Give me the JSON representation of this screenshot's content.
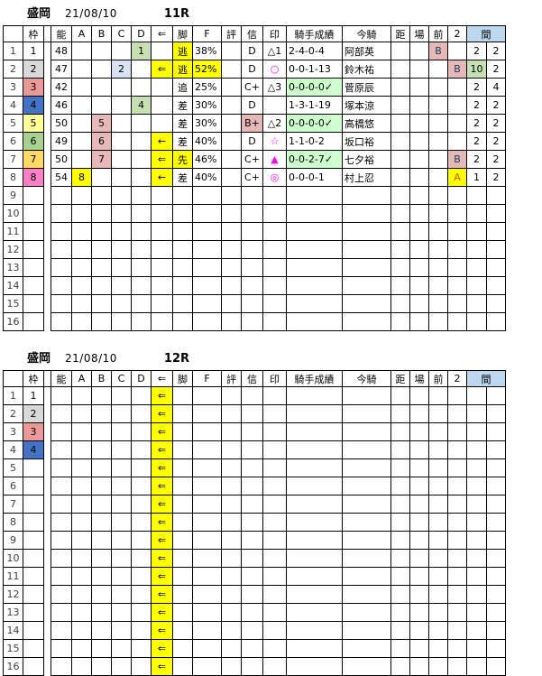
{
  "meta": {
    "venue": "盛岡",
    "date": "21/08/10"
  },
  "colors": {
    "yellow": "#ffff00",
    "green": "#c6e0b4",
    "paleGreen": "#ccffcc",
    "blue": "#d9e1f2",
    "rose": "#e6b9b8",
    "wakuGray": "#d9d9d9",
    "wakuRed": "#ea9999",
    "wakuBlue": "#4472c4",
    "wakuYellow": "#ffff99",
    "wakuGreen": "#a9d08e",
    "wakuOrange": "#ffd966",
    "wakuPink": "#ff80c5",
    "headerBand": "#bdd7ee",
    "magenta": "#ff00ff",
    "navy": "#1f3864",
    "burnt": "#c55a11"
  },
  "tables": [
    {
      "race": "11R",
      "headers": [
        "",
        "枠",
        "",
        "能",
        "A",
        "B",
        "C",
        "D",
        "⇐",
        "脚",
        "F",
        "評",
        "信",
        "印",
        "騎手成績",
        "今騎",
        "距",
        "場",
        "前",
        "2",
        "間"
      ],
      "rows": [
        [
          "1",
          "1",
          "",
          "48",
          "",
          "",
          "",
          {
            "t": "1",
            "bg": "green"
          },
          "",
          {
            "t": "逃",
            "bg": "yellow"
          },
          "38%",
          "",
          "D",
          "△1",
          "2-4-0-4",
          "阿部英",
          "",
          "",
          {
            "t": "B",
            "bg": "rose",
            "fg": "navy"
          },
          "",
          "2",
          "2"
        ],
        [
          "2",
          {
            "t": "2",
            "bg": "wakuGray"
          },
          "",
          "47",
          "",
          "",
          {
            "t": "2",
            "bg": "blue"
          },
          "",
          {
            "t": "⇐",
            "bg": "yellow"
          },
          {
            "t": "逃",
            "bg": "yellow"
          },
          {
            "t": "52%",
            "bg": "yellow"
          },
          "",
          "D",
          {
            "t": "○",
            "fg": "magenta"
          },
          "0-0-1-13",
          "鈴木祐",
          "",
          "",
          "",
          {
            "t": "B",
            "bg": "rose",
            "fg": "navy"
          },
          {
            "t": "10",
            "bg": "green"
          },
          "2"
        ],
        [
          "3",
          {
            "t": "3",
            "bg": "wakuRed"
          },
          "",
          "42",
          "",
          "",
          "",
          "",
          "",
          "追",
          "25%",
          "",
          "C+",
          "△3",
          {
            "t": "0-0-0-0✓",
            "bg": "paleGreen"
          },
          "菅原辰",
          "",
          "",
          "",
          "",
          "2",
          "4"
        ],
        [
          "4",
          {
            "t": "4",
            "bg": "wakuBlue"
          },
          "",
          "46",
          "",
          "",
          "",
          {
            "t": "4",
            "bg": "green"
          },
          "",
          "差",
          "30%",
          "",
          "D",
          "",
          "1-3-1-19",
          "塚本涼",
          "",
          "",
          "",
          "",
          "2",
          "2"
        ],
        [
          "5",
          {
            "t": "5",
            "bg": "wakuYellow"
          },
          "",
          {
            "t": "50",
            "bg": "rose"
          },
          "",
          {
            "t": "5",
            "bg": "rose"
          },
          "",
          "",
          "",
          "差",
          "30%",
          "",
          {
            "t": "B+",
            "bg": "rose"
          },
          "△2",
          {
            "t": "0-0-0-0✓",
            "bg": "paleGreen"
          },
          "高橋悠",
          "",
          "",
          "",
          "",
          "2",
          "2"
        ],
        [
          "6",
          {
            "t": "6",
            "bg": "wakuGreen"
          },
          "",
          "49",
          "",
          {
            "t": "6",
            "bg": "rose"
          },
          "",
          "",
          {
            "t": "←",
            "bg": "yellow"
          },
          "差",
          "40%",
          "",
          "D",
          {
            "t": "☆",
            "fg": "magenta"
          },
          "1-1-0-2",
          "坂口裕",
          "",
          "",
          "",
          "",
          "2",
          "2"
        ],
        [
          "7",
          {
            "t": "7",
            "bg": "wakuOrange"
          },
          "",
          {
            "t": "50",
            "bg": "rose"
          },
          "",
          {
            "t": "7",
            "bg": "rose"
          },
          "",
          "",
          {
            "t": "⇐",
            "bg": "yellow"
          },
          {
            "t": "先",
            "bg": "yellow"
          },
          "46%",
          "",
          "C+",
          {
            "t": "▲",
            "fg": "magenta"
          },
          {
            "t": "0-0-2-7✓",
            "bg": "paleGreen"
          },
          "七夕裕",
          "",
          "",
          "",
          {
            "t": "B",
            "bg": "rose",
            "fg": "navy"
          },
          "2",
          "2"
        ],
        [
          "8",
          {
            "t": "8",
            "bg": "wakuPink"
          },
          "",
          {
            "t": "54",
            "bg": "rose"
          },
          {
            "t": "8",
            "bg": "yellow"
          },
          "",
          "",
          "",
          {
            "t": "←",
            "bg": "yellow"
          },
          "差",
          "40%",
          "",
          "C+",
          {
            "t": "◎",
            "fg": "magenta"
          },
          "0-0-0-1",
          "村上忍",
          "",
          "",
          "",
          {
            "t": "A",
            "bg": "yellow",
            "fg": "burnt"
          },
          "1",
          "2"
        ],
        [
          "9",
          "",
          "",
          "",
          "",
          "",
          "",
          "",
          "",
          "",
          "",
          "",
          "",
          "",
          "",
          "",
          "",
          "",
          "",
          "",
          "",
          ""
        ],
        [
          "10",
          "",
          "",
          "",
          "",
          "",
          "",
          "",
          "",
          "",
          "",
          "",
          "",
          "",
          "",
          "",
          "",
          "",
          "",
          "",
          "",
          ""
        ],
        [
          "11",
          "",
          "",
          "",
          "",
          "",
          "",
          "",
          "",
          "",
          "",
          "",
          "",
          "",
          "",
          "",
          "",
          "",
          "",
          "",
          "",
          ""
        ],
        [
          "12",
          "",
          "",
          "",
          "",
          "",
          "",
          "",
          "",
          "",
          "",
          "",
          "",
          "",
          "",
          "",
          "",
          "",
          "",
          "",
          "",
          ""
        ],
        [
          "13",
          "",
          "",
          "",
          "",
          "",
          "",
          "",
          "",
          "",
          "",
          "",
          "",
          "",
          "",
          "",
          "",
          "",
          "",
          "",
          "",
          ""
        ],
        [
          "14",
          "",
          "",
          "",
          "",
          "",
          "",
          "",
          "",
          "",
          "",
          "",
          "",
          "",
          "",
          "",
          "",
          "",
          "",
          "",
          "",
          ""
        ],
        [
          "15",
          "",
          "",
          "",
          "",
          "",
          "",
          "",
          "",
          "",
          "",
          "",
          "",
          "",
          "",
          "",
          "",
          "",
          "",
          "",
          "",
          ""
        ],
        [
          "16",
          "",
          "",
          "",
          "",
          "",
          "",
          "",
          "",
          "",
          "",
          "",
          "",
          "",
          "",
          "",
          "",
          "",
          "",
          "",
          "",
          ""
        ]
      ]
    },
    {
      "race": "12R",
      "headers": [
        "",
        "枠",
        "",
        "能",
        "A",
        "B",
        "C",
        "D",
        "⇐",
        "脚",
        "F",
        "評",
        "信",
        "印",
        "騎手成績",
        "今騎",
        "距",
        "場",
        "前",
        "2",
        "間"
      ],
      "rows": [
        [
          "1",
          "1",
          "",
          "",
          "",
          "",
          "",
          "",
          {
            "t": "⇐",
            "bg": "yellow"
          },
          "",
          "",
          "",
          "",
          "",
          "",
          "",
          "",
          "",
          "",
          "",
          "",
          ""
        ],
        [
          "2",
          {
            "t": "2",
            "bg": "wakuGray"
          },
          "",
          "",
          "",
          "",
          "",
          "",
          {
            "t": "⇐",
            "bg": "yellow"
          },
          "",
          "",
          "",
          "",
          "",
          "",
          "",
          "",
          "",
          "",
          "",
          "",
          ""
        ],
        [
          "3",
          {
            "t": "3",
            "bg": "wakuRed"
          },
          "",
          "",
          "",
          "",
          "",
          "",
          {
            "t": "⇐",
            "bg": "yellow"
          },
          "",
          "",
          "",
          "",
          "",
          "",
          "",
          "",
          "",
          "",
          "",
          "",
          ""
        ],
        [
          "4",
          {
            "t": "4",
            "bg": "wakuBlue"
          },
          "",
          "",
          "",
          "",
          "",
          "",
          {
            "t": "⇐",
            "bg": "yellow"
          },
          "",
          "",
          "",
          "",
          "",
          "",
          "",
          "",
          "",
          "",
          "",
          "",
          ""
        ],
        [
          "5",
          "",
          "",
          "",
          "",
          "",
          "",
          "",
          {
            "t": "⇐",
            "bg": "yellow"
          },
          "",
          "",
          "",
          "",
          "",
          "",
          "",
          "",
          "",
          "",
          "",
          "",
          ""
        ],
        [
          "6",
          "",
          "",
          "",
          "",
          "",
          "",
          "",
          {
            "t": "⇐",
            "bg": "yellow"
          },
          "",
          "",
          "",
          "",
          "",
          "",
          "",
          "",
          "",
          "",
          "",
          "",
          ""
        ],
        [
          "7",
          "",
          "",
          "",
          "",
          "",
          "",
          "",
          {
            "t": "⇐",
            "bg": "yellow"
          },
          "",
          "",
          "",
          "",
          "",
          "",
          "",
          "",
          "",
          "",
          "",
          "",
          ""
        ],
        [
          "8",
          "",
          "",
          "",
          "",
          "",
          "",
          "",
          {
            "t": "⇐",
            "bg": "yellow"
          },
          "",
          "",
          "",
          "",
          "",
          "",
          "",
          "",
          "",
          "",
          "",
          "",
          ""
        ],
        [
          "9",
          "",
          "",
          "",
          "",
          "",
          "",
          "",
          {
            "t": "⇐",
            "bg": "yellow"
          },
          "",
          "",
          "",
          "",
          "",
          "",
          "",
          "",
          "",
          "",
          "",
          "",
          ""
        ],
        [
          "10",
          "",
          "",
          "",
          "",
          "",
          "",
          "",
          {
            "t": "⇐",
            "bg": "yellow"
          },
          "",
          "",
          "",
          "",
          "",
          "",
          "",
          "",
          "",
          "",
          "",
          "",
          ""
        ],
        [
          "11",
          "",
          "",
          "",
          "",
          "",
          "",
          "",
          {
            "t": "⇐",
            "bg": "yellow"
          },
          "",
          "",
          "",
          "",
          "",
          "",
          "",
          "",
          "",
          "",
          "",
          "",
          ""
        ],
        [
          "12",
          "",
          "",
          "",
          "",
          "",
          "",
          "",
          {
            "t": "⇐",
            "bg": "yellow"
          },
          "",
          "",
          "",
          "",
          "",
          "",
          "",
          "",
          "",
          "",
          "",
          "",
          ""
        ],
        [
          "13",
          "",
          "",
          "",
          "",
          "",
          "",
          "",
          {
            "t": "⇐",
            "bg": "yellow"
          },
          "",
          "",
          "",
          "",
          "",
          "",
          "",
          "",
          "",
          "",
          "",
          "",
          ""
        ],
        [
          "14",
          "",
          "",
          "",
          "",
          "",
          "",
          "",
          {
            "t": "⇐",
            "bg": "yellow"
          },
          "",
          "",
          "",
          "",
          "",
          "",
          "",
          "",
          "",
          "",
          "",
          "",
          ""
        ],
        [
          "15",
          "",
          "",
          "",
          "",
          "",
          "",
          "",
          {
            "t": "⇐",
            "bg": "yellow"
          },
          "",
          "",
          "",
          "",
          "",
          "",
          "",
          "",
          "",
          "",
          "",
          "",
          ""
        ],
        [
          "16",
          "",
          "",
          "",
          "",
          "",
          "",
          "",
          {
            "t": "⇐",
            "bg": "yellow"
          },
          "",
          "",
          "",
          "",
          "",
          "",
          "",
          "",
          "",
          "",
          "",
          "",
          ""
        ]
      ]
    }
  ]
}
